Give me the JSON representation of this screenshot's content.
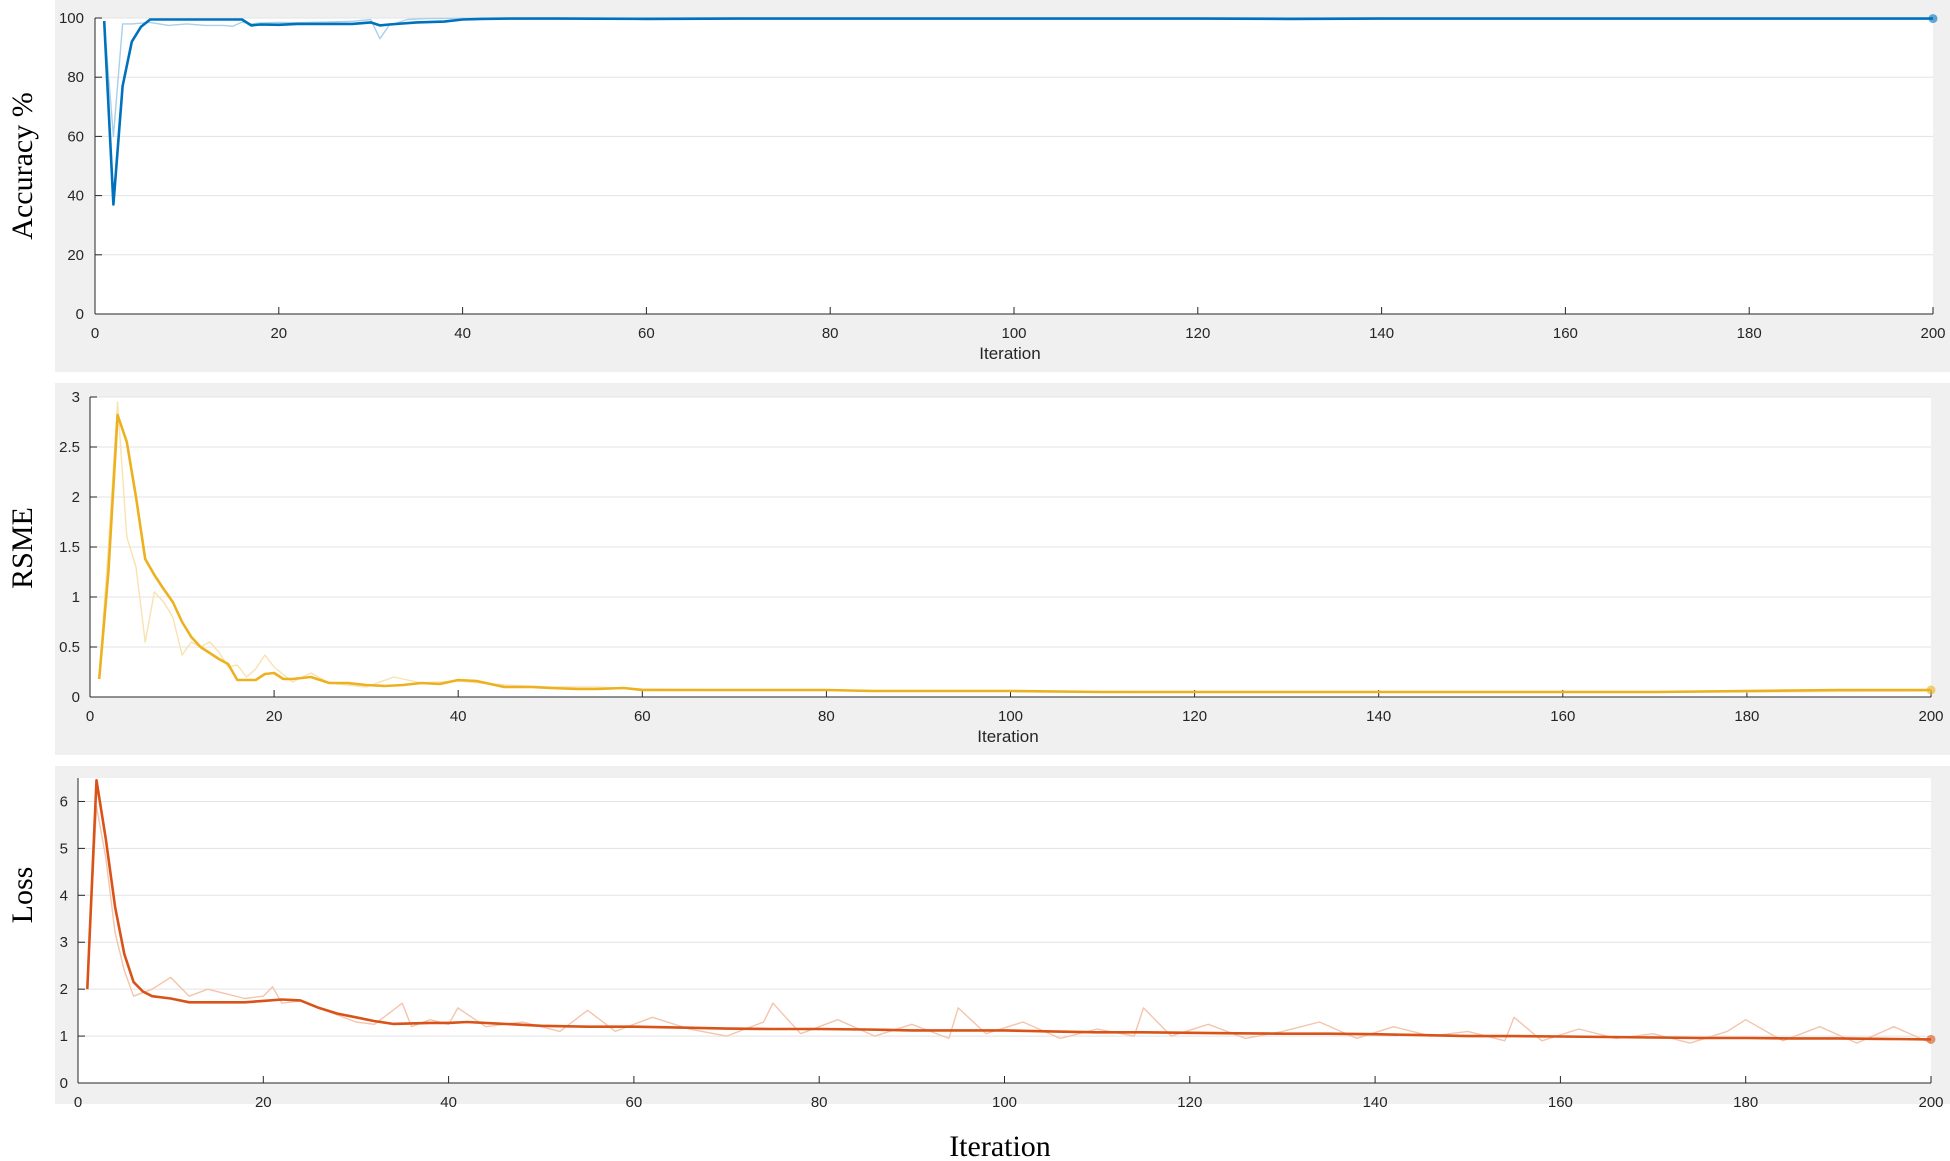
{
  "chart_data": [
    {
      "type": "line",
      "ylabel": "Accuracy %",
      "xlabel": "Iteration",
      "xlim": [
        0,
        200
      ],
      "ylim": [
        0,
        100
      ],
      "xticks": [
        "0",
        "20",
        "40",
        "60",
        "80",
        "100",
        "120",
        "140",
        "160",
        "180",
        "200"
      ],
      "yticks": [
        "0",
        "20",
        "40",
        "60",
        "80",
        "100"
      ],
      "grid": true,
      "colors": {
        "smoothed": "#0072BD",
        "raw": "#A8D0EC"
      },
      "series": [
        {
          "role": "smoothed",
          "x": [
            1,
            2,
            3,
            4,
            5,
            6,
            8,
            10,
            12,
            14,
            16,
            17,
            18,
            20,
            22,
            25,
            28,
            30,
            31,
            32,
            35,
            38,
            40,
            42,
            45,
            50,
            60,
            70,
            80,
            90,
            100,
            110,
            120,
            130,
            140,
            150,
            160,
            170,
            180,
            190,
            200
          ],
          "y": [
            99,
            37,
            77,
            92,
            97,
            99.5,
            99.5,
            99.5,
            99.5,
            99.5,
            99.5,
            97.5,
            97.8,
            97.7,
            98,
            98,
            98,
            98.5,
            97.5,
            97.8,
            98.5,
            98.8,
            99.5,
            99.7,
            99.8,
            99.8,
            99.7,
            99.8,
            99.8,
            99.8,
            99.8,
            99.8,
            99.8,
            99.7,
            99.8,
            99.8,
            99.8,
            99.8,
            99.8,
            99.8,
            99.8
          ]
        },
        {
          "role": "raw",
          "x": [
            1,
            2,
            3,
            4,
            6,
            8,
            10,
            12,
            14,
            15,
            16,
            17,
            18,
            20,
            22,
            25,
            28,
            30,
            31,
            32,
            34,
            36,
            40,
            45,
            50,
            60,
            80,
            100,
            120,
            140,
            160,
            180,
            200
          ],
          "y": [
            99,
            60,
            98,
            98,
            98.5,
            97.5,
            98,
            97.5,
            97.5,
            97.2,
            98.6,
            98,
            98.3,
            98.5,
            98.4,
            98.6,
            98.9,
            99.5,
            93,
            97.5,
            99.5,
            99.8,
            99.9,
            99.9,
            100,
            100,
            100,
            100,
            100,
            100,
            100,
            100,
            100
          ]
        }
      ]
    },
    {
      "type": "line",
      "ylabel": "RSME",
      "xlabel": "Iteration",
      "xlim": [
        0,
        200
      ],
      "ylim": [
        0,
        3
      ],
      "xticks": [
        "0",
        "20",
        "40",
        "60",
        "80",
        "100",
        "120",
        "140",
        "160",
        "180",
        "200"
      ],
      "yticks": [
        "0",
        "0.5",
        "1",
        "1.5",
        "2",
        "2.5",
        "3"
      ],
      "grid": true,
      "colors": {
        "smoothed": "#EDB120",
        "raw": "#F8E2B0"
      },
      "series": [
        {
          "role": "smoothed",
          "x": [
            1,
            2,
            3,
            4,
            5,
            6,
            7,
            8,
            9,
            10,
            11,
            12,
            13,
            14,
            15,
            16,
            17,
            18,
            19,
            20,
            21,
            22,
            24,
            26,
            28,
            30,
            32,
            34,
            36,
            38,
            40,
            42,
            45,
            48,
            50,
            53,
            55,
            58,
            60,
            65,
            70,
            75,
            80,
            85,
            90,
            95,
            100,
            110,
            120,
            130,
            140,
            150,
            160,
            170,
            180,
            190,
            200
          ],
          "y": [
            0.18,
            1.25,
            2.82,
            2.55,
            2.0,
            1.38,
            1.22,
            1.08,
            0.95,
            0.75,
            0.6,
            0.5,
            0.44,
            0.38,
            0.33,
            0.17,
            0.17,
            0.17,
            0.23,
            0.24,
            0.18,
            0.18,
            0.2,
            0.14,
            0.14,
            0.12,
            0.11,
            0.12,
            0.14,
            0.13,
            0.17,
            0.16,
            0.1,
            0.1,
            0.09,
            0.08,
            0.08,
            0.09,
            0.07,
            0.07,
            0.07,
            0.07,
            0.07,
            0.06,
            0.06,
            0.06,
            0.06,
            0.05,
            0.05,
            0.05,
            0.05,
            0.05,
            0.05,
            0.05,
            0.06,
            0.07,
            0.07
          ]
        },
        {
          "role": "raw",
          "x": [
            1,
            2,
            3,
            4,
            5,
            6,
            7,
            8,
            9,
            10,
            11,
            12,
            13,
            14,
            15,
            16,
            17,
            18,
            19,
            20,
            22,
            24,
            26,
            28,
            30,
            33,
            36,
            40,
            45,
            50,
            55,
            60,
            70,
            80,
            90,
            100,
            120,
            140,
            160,
            180,
            200
          ],
          "y": [
            0.2,
            1.5,
            2.95,
            1.6,
            1.3,
            0.55,
            1.05,
            0.95,
            0.8,
            0.42,
            0.55,
            0.5,
            0.55,
            0.45,
            0.3,
            0.32,
            0.2,
            0.28,
            0.42,
            0.3,
            0.15,
            0.24,
            0.14,
            0.12,
            0.1,
            0.2,
            0.14,
            0.16,
            0.12,
            0.1,
            0.1,
            0.08,
            0.07,
            0.07,
            0.06,
            0.06,
            0.05,
            0.05,
            0.05,
            0.05,
            0.06
          ]
        }
      ]
    },
    {
      "type": "line",
      "ylabel": "Loss",
      "xlabel": "Iteration",
      "xlim": [
        0,
        200
      ],
      "ylim": [
        0,
        6.5
      ],
      "xticks": [
        "0",
        "20",
        "40",
        "60",
        "80",
        "100",
        "120",
        "140",
        "160",
        "180",
        "200"
      ],
      "yticks": [
        "0",
        "1",
        "2",
        "3",
        "4",
        "5",
        "6"
      ],
      "grid": true,
      "colors": {
        "smoothed": "#D95319",
        "raw": "#F4C4AC"
      },
      "series": [
        {
          "role": "smoothed",
          "x": [
            1,
            2,
            3,
            4,
            5,
            6,
            7,
            8,
            10,
            12,
            15,
            18,
            20,
            22,
            24,
            26,
            28,
            30,
            32,
            34,
            36,
            38,
            40,
            42,
            45,
            50,
            55,
            60,
            65,
            70,
            75,
            80,
            85,
            90,
            95,
            100,
            105,
            110,
            115,
            120,
            125,
            130,
            135,
            140,
            145,
            150,
            155,
            160,
            165,
            170,
            175,
            180,
            185,
            190,
            195,
            200
          ],
          "y": [
            2.0,
            6.45,
            5.2,
            3.75,
            2.75,
            2.15,
            1.95,
            1.85,
            1.8,
            1.72,
            1.72,
            1.72,
            1.75,
            1.78,
            1.76,
            1.6,
            1.48,
            1.4,
            1.32,
            1.26,
            1.27,
            1.28,
            1.28,
            1.3,
            1.27,
            1.22,
            1.2,
            1.2,
            1.18,
            1.16,
            1.15,
            1.15,
            1.14,
            1.12,
            1.12,
            1.12,
            1.1,
            1.08,
            1.08,
            1.07,
            1.06,
            1.05,
            1.05,
            1.04,
            1.02,
            1.0,
            1.0,
            0.99,
            0.98,
            0.97,
            0.96,
            0.96,
            0.95,
            0.95,
            0.94,
            0.93
          ]
        },
        {
          "role": "raw",
          "x": [
            1,
            2,
            3,
            4,
            5,
            6,
            8,
            10,
            12,
            14,
            16,
            18,
            20,
            21,
            22,
            24,
            26,
            28,
            30,
            32,
            35,
            36,
            38,
            40,
            41,
            44,
            48,
            52,
            55,
            58,
            62,
            66,
            70,
            74,
            75,
            78,
            82,
            86,
            90,
            94,
            95,
            98,
            102,
            106,
            110,
            114,
            115,
            118,
            122,
            126,
            130,
            134,
            138,
            142,
            146,
            150,
            154,
            155,
            158,
            162,
            166,
            170,
            174,
            178,
            180,
            184,
            188,
            192,
            196,
            200
          ],
          "y": [
            2.0,
            5.9,
            4.8,
            3.2,
            2.4,
            1.85,
            2.0,
            2.25,
            1.85,
            2.0,
            1.9,
            1.8,
            1.85,
            2.05,
            1.7,
            1.75,
            1.6,
            1.45,
            1.3,
            1.25,
            1.7,
            1.2,
            1.35,
            1.25,
            1.6,
            1.2,
            1.3,
            1.1,
            1.55,
            1.1,
            1.4,
            1.15,
            1.0,
            1.3,
            1.7,
            1.05,
            1.35,
            1.0,
            1.25,
            0.95,
            1.6,
            1.05,
            1.3,
            0.95,
            1.15,
            1.0,
            1.6,
            1.0,
            1.25,
            0.95,
            1.1,
            1.3,
            0.95,
            1.2,
            1.0,
            1.1,
            0.9,
            1.4,
            0.9,
            1.15,
            0.95,
            1.05,
            0.85,
            1.1,
            1.35,
            0.9,
            1.2,
            0.85,
            1.2,
            0.85
          ]
        }
      ]
    }
  ],
  "figure_xlabel": "Iteration"
}
